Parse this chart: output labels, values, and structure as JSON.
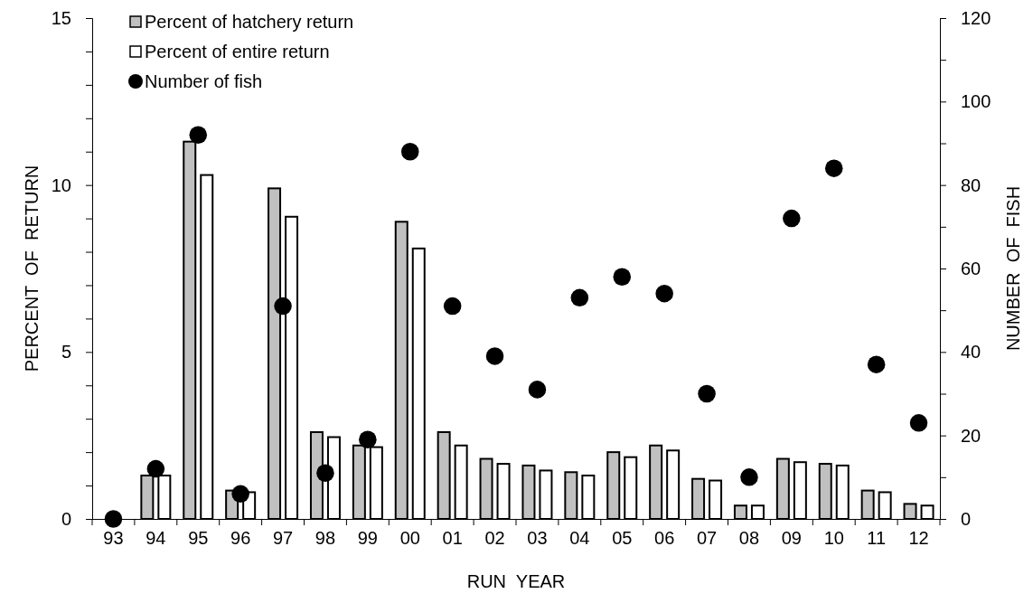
{
  "chart_data": {
    "type": "bar",
    "xlabel": "RUN  YEAR",
    "ylabel": "PERCENT  OF  RETURN",
    "y2label": "NUMBER  OF  FISH",
    "categories": [
      "93",
      "94",
      "95",
      "96",
      "97",
      "98",
      "99",
      "00",
      "01",
      "02",
      "03",
      "04",
      "05",
      "06",
      "07",
      "08",
      "09",
      "10",
      "11",
      "12"
    ],
    "series": [
      {
        "name": "Percent of hatchery return",
        "color": "#c0c0c0",
        "values": [
          0,
          1.3,
          11.3,
          0.85,
          9.9,
          2.6,
          2.2,
          8.9,
          2.6,
          1.8,
          1.6,
          1.4,
          2.0,
          2.2,
          1.2,
          0.4,
          1.8,
          1.65,
          0.85,
          0.45
        ]
      },
      {
        "name": "Percent of entire return",
        "color": "#ffffff",
        "values": [
          0,
          1.3,
          10.3,
          0.8,
          9.05,
          2.45,
          2.15,
          8.1,
          2.2,
          1.65,
          1.45,
          1.3,
          1.85,
          2.05,
          1.15,
          0.4,
          1.7,
          1.6,
          0.8,
          0.4
        ]
      },
      {
        "name": "Number of fish",
        "type": "scatter",
        "axis": "y2",
        "color": "#000000",
        "marker": "circle",
        "values": [
          0,
          12,
          92,
          6,
          51,
          11,
          19,
          88,
          51,
          39,
          31,
          53,
          58,
          54,
          30,
          10,
          72,
          84,
          37,
          23
        ]
      }
    ],
    "ylim": [
      0,
      15
    ],
    "yticks": [
      0,
      {
        "value": 1,
        "label": null
      },
      {
        "value": 2,
        "label": null
      },
      {
        "value": 3,
        "label": null
      },
      {
        "value": 4,
        "label": null
      },
      5,
      {
        "value": 6,
        "label": null
      },
      {
        "value": 7,
        "label": null
      },
      {
        "value": 8,
        "label": null
      },
      {
        "value": 9,
        "label": null
      },
      10,
      {
        "value": 11,
        "label": null
      },
      {
        "value": 12,
        "label": null
      },
      {
        "value": 13,
        "label": null
      },
      {
        "value": 14,
        "label": null
      },
      15
    ],
    "y2lim": [
      0,
      120
    ],
    "y2ticks": [
      0,
      {
        "value": 10,
        "label": null
      },
      20,
      {
        "value": 30,
        "label": null
      },
      40,
      {
        "value": 50,
        "label": null
      },
      60,
      {
        "value": 70,
        "label": null
      },
      80,
      {
        "value": 90,
        "label": null
      },
      100,
      {
        "value": 110,
        "label": null
      },
      120
    ],
    "grid": false,
    "legend": "top left"
  }
}
